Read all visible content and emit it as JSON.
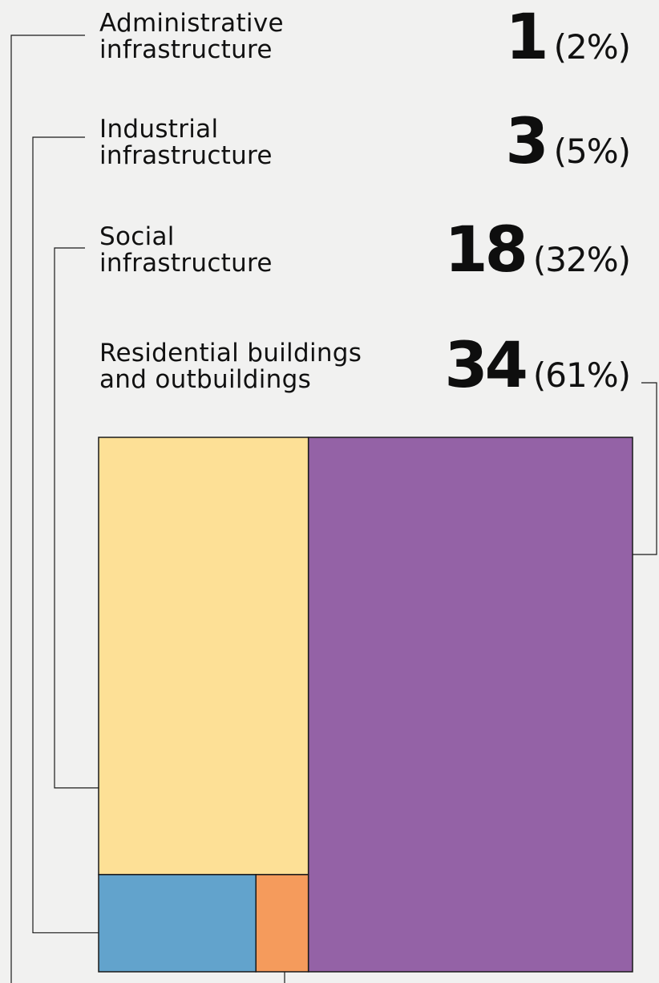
{
  "chart_data": {
    "type": "treemap",
    "title": "",
    "items": [
      {
        "label_lines": [
          "Administrative",
          "infrastructure"
        ],
        "value": 1,
        "percent": "(2%)",
        "color": "#f59b5c"
      },
      {
        "label_lines": [
          "Industrial",
          "infrastructure"
        ],
        "value": 3,
        "percent": "(5%)",
        "color": "#62a3cc"
      },
      {
        "label_lines": [
          "Social",
          "infrastructure"
        ],
        "value": 18,
        "percent": "(32%)",
        "color": "#fde096"
      },
      {
        "label_lines": [
          "Residential buildings",
          "and outbuildings"
        ],
        "value": 34,
        "percent": "(61%)",
        "color": "#9462a6"
      }
    ]
  }
}
